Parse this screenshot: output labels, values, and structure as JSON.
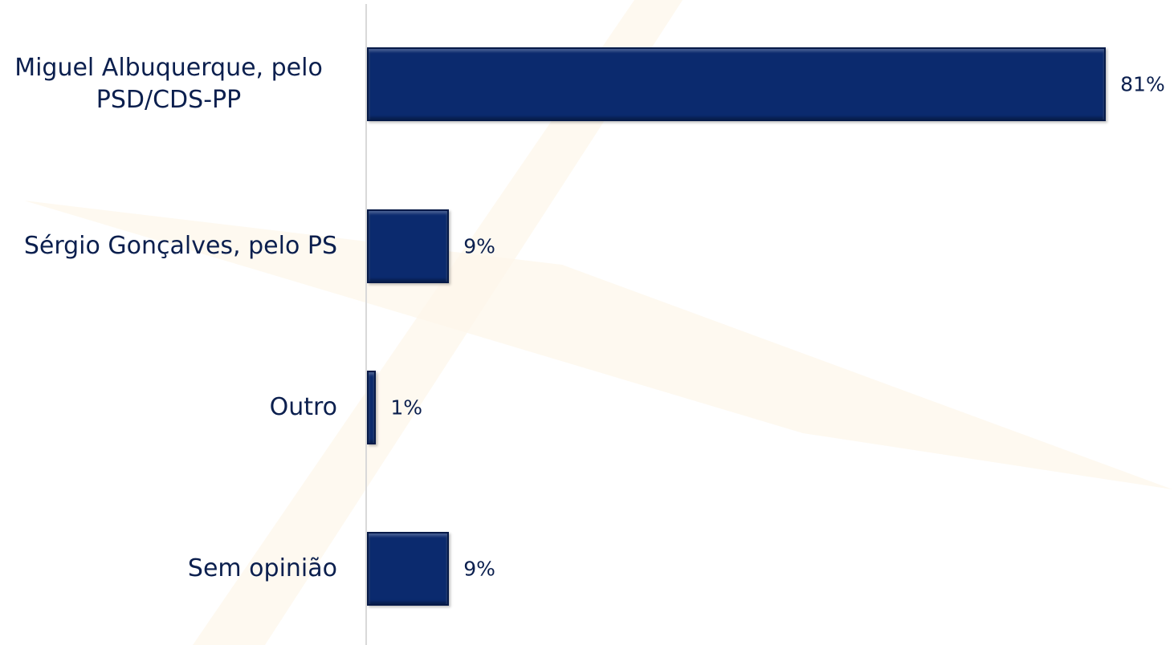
{
  "chart_data": {
    "type": "bar",
    "orientation": "horizontal",
    "categories": [
      "Miguel Albuquerque, pelo PSD/CDS-PP",
      "Sérgio Gonçalves, pelo PS",
      "Outro",
      "Sem opinião"
    ],
    "values": [
      81,
      9,
      1,
      9
    ],
    "value_labels": [
      "81%",
      "9%",
      "1%",
      "9%"
    ],
    "color": "#0b2a6e"
  }
}
